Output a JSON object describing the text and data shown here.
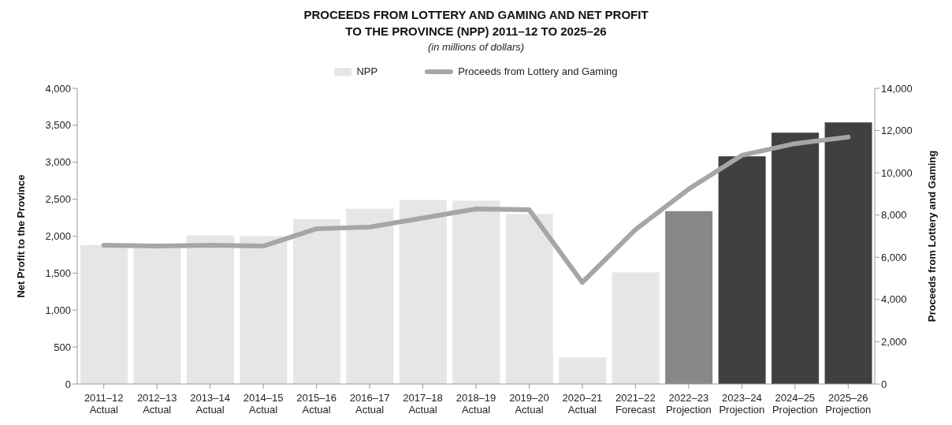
{
  "chart_data": {
    "type": "bar",
    "title": "PROCEEDS FROM LOTTERY AND GAMING AND NET PROFIT TO THE PROVINCE (NPP) 2011–12 TO 2025–26",
    "subtitle": "(in millions of dollars)",
    "ylabel": "Net Profit to the Province",
    "y2label": "Proceeds from Lottery and Gaming",
    "categories": [
      "2011–12 Actual",
      "2012–13 Actual",
      "2013–14 Actual",
      "2014–15 Actual",
      "2015–16 Actual",
      "2016–17 Actual",
      "2017–18 Actual",
      "2018–19 Actual",
      "2019–20 Actual",
      "2020–21 Actual",
      "2021–22 Forecast",
      "2022–23 Projection",
      "2023–24 Projection",
      "2024–25 Projection",
      "2025–26 Projection"
    ],
    "series": [
      {
        "name": "NPP",
        "color": "#e6e6e6",
        "colors": [
          "#e6e6e6",
          "#e6e6e6",
          "#e6e6e6",
          "#e6e6e6",
          "#e6e6e6",
          "#e6e6e6",
          "#e6e6e6",
          "#e6e6e6",
          "#e6e6e6",
          "#e6e6e6",
          "#e6e6e6",
          "#888888",
          "#404040",
          "#404040",
          "#404040"
        ],
        "values": [
          1880,
          1840,
          2010,
          2000,
          2230,
          2370,
          2490,
          2480,
          2300,
          360,
          1510,
          2340,
          3080,
          3400,
          3540
        ]
      },
      {
        "name": "Proceeds from Lottery and Gaming",
        "type": "line",
        "axis": "y2",
        "color": "#a6a6a6",
        "values": [
          6570,
          6530,
          6570,
          6530,
          7350,
          7430,
          7860,
          8290,
          8250,
          4810,
          7310,
          9230,
          10830,
          11380,
          11690
        ]
      }
    ],
    "ylim": [
      0,
      4000
    ],
    "yticks": [
      0,
      500,
      {
        "value": 1000,
        "label": "1,000"
      },
      {
        "value": 1500,
        "label": "1,500"
      },
      {
        "value": 2000,
        "label": "2,000"
      },
      {
        "value": 2500,
        "label": "2,500"
      },
      {
        "value": 3000,
        "label": "3,000"
      },
      {
        "value": 3500,
        "label": "3,500"
      },
      {
        "value": 4000,
        "label": "4,000"
      }
    ],
    "y2lim": [
      0,
      14000
    ],
    "y2ticks": [
      0,
      {
        "value": 2000,
        "label": "2,000"
      },
      {
        "value": 4000,
        "label": "4,000"
      },
      {
        "value": 6000,
        "label": "6,000"
      },
      {
        "value": 8000,
        "label": "8,000"
      },
      {
        "value": 10000,
        "label": "10,000"
      },
      {
        "value": 12000,
        "label": "12,000"
      },
      {
        "value": 14000,
        "label": "14,000"
      }
    ],
    "grid": false,
    "legend": "top",
    "marker": "none",
    "line_style": "solid"
  }
}
